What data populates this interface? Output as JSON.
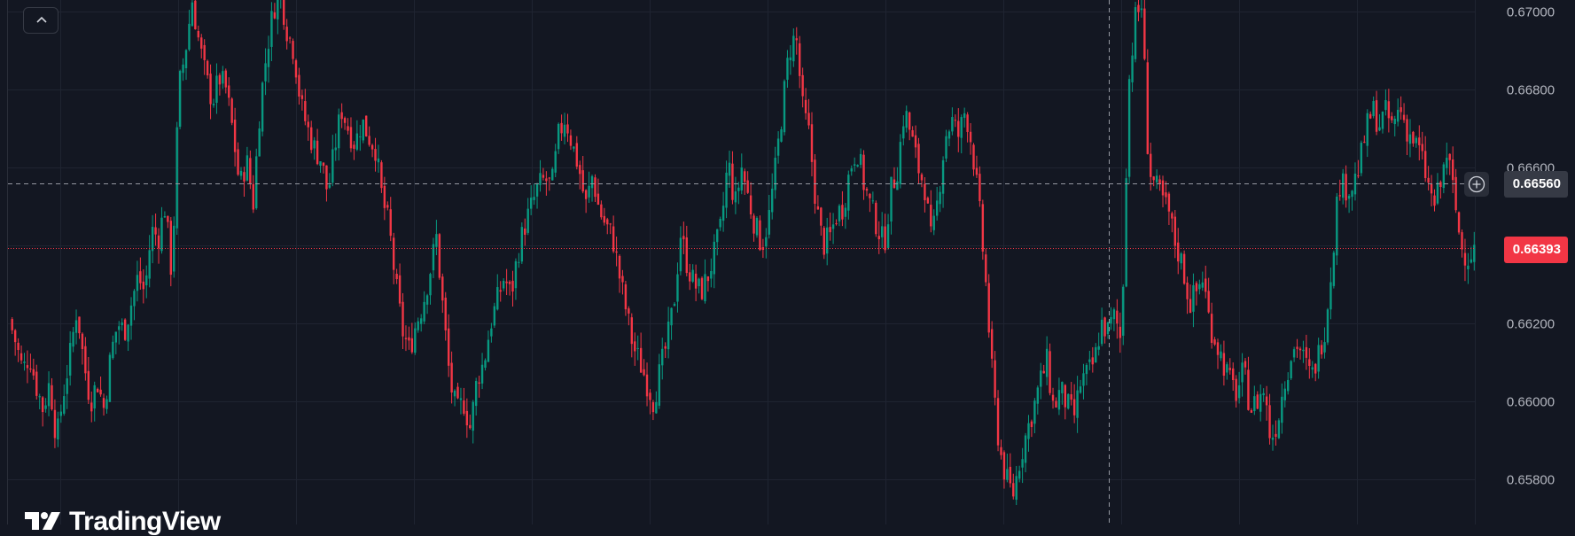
{
  "colors": {
    "background": "#131722",
    "grid": "#1f2431",
    "up": "#089981",
    "down": "#f23645",
    "axis_text": "#b2b5be",
    "crosshair": "#9598a1",
    "crosshair_tag": "#363a45",
    "current_price": "#f23645"
  },
  "icons": {
    "collapse": "chevron-up-icon",
    "add": "plus-circle-icon",
    "logo": "tradingview-logo-icon"
  },
  "price_axis": {
    "ticks": [
      "0.67000",
      "0.66800",
      "0.66600",
      "0.66200",
      "0.66000",
      "0.65800"
    ]
  },
  "crosshair": {
    "price": 0.6656,
    "price_label": "0.66560"
  },
  "current_price": {
    "price": 0.66393,
    "price_label": "0.66393"
  },
  "branding": {
    "logo_text": "TradingView"
  },
  "chart_data": {
    "type": "candlestick",
    "ylim": [
      0.6573,
      0.6706
    ],
    "grid": true,
    "y_ticks": [
      0.67,
      0.668,
      0.666,
      0.664,
      0.662,
      0.66,
      0.658
    ],
    "y_tick_labels": [
      "0.67000",
      "0.66800",
      "0.66600",
      "",
      "0.66200",
      "0.66000",
      "0.65800"
    ],
    "title": "",
    "xlabel": "",
    "ylabel": "",
    "series": [
      {
        "name": "",
        "close_path": [
          0.6621,
          0.6615,
          0.6608,
          0.6612,
          0.6604,
          0.6598,
          0.6605,
          0.659,
          0.6602,
          0.6612,
          0.6624,
          0.661,
          0.66,
          0.6605,
          0.6598,
          0.6612,
          0.662,
          0.6618,
          0.6625,
          0.6632,
          0.6628,
          0.6644,
          0.6642,
          0.665,
          0.6632,
          0.668,
          0.669,
          0.6703,
          0.6692,
          0.6683,
          0.6677,
          0.6683,
          0.668,
          0.6669,
          0.6655,
          0.6662,
          0.6651,
          0.6676,
          0.669,
          0.6701,
          0.6705,
          0.6695,
          0.669,
          0.6676,
          0.667,
          0.6665,
          0.6662,
          0.6653,
          0.6665,
          0.6675,
          0.667,
          0.6666,
          0.6672,
          0.6668,
          0.6665,
          0.6652,
          0.6645,
          0.663,
          0.6618,
          0.6613,
          0.662,
          0.6625,
          0.6633,
          0.6642,
          0.6623,
          0.6605,
          0.6597,
          0.66,
          0.6593,
          0.6606,
          0.661,
          0.662,
          0.6626,
          0.6632,
          0.6627,
          0.6638,
          0.6645,
          0.665,
          0.6655,
          0.6657,
          0.6655,
          0.6668,
          0.6673,
          0.6666,
          0.666,
          0.665,
          0.6658,
          0.6649,
          0.6645,
          0.6642,
          0.6632,
          0.6623,
          0.6614,
          0.661,
          0.6605,
          0.66,
          0.6608,
          0.6615,
          0.6625,
          0.6643,
          0.6635,
          0.663,
          0.6628,
          0.6632,
          0.6638,
          0.6645,
          0.6662,
          0.665,
          0.666,
          0.6652,
          0.6645,
          0.664,
          0.6647,
          0.666,
          0.6675,
          0.669,
          0.6694,
          0.6675,
          0.6668,
          0.665,
          0.664,
          0.6642,
          0.6648,
          0.665,
          0.666,
          0.6665,
          0.6656,
          0.665,
          0.6645,
          0.664,
          0.6654,
          0.666,
          0.6675,
          0.6668,
          0.666,
          0.6655,
          0.664,
          0.6653,
          0.6668,
          0.6672,
          0.6668,
          0.6675,
          0.6665,
          0.665,
          0.663,
          0.6605,
          0.6588,
          0.658,
          0.6576,
          0.6585,
          0.6592,
          0.6598,
          0.6605,
          0.661,
          0.6598,
          0.6603,
          0.6599,
          0.6596,
          0.6605,
          0.6607,
          0.661,
          0.662,
          0.6618,
          0.6622,
          0.6615,
          0.668,
          0.6698,
          0.6702,
          0.666,
          0.6655,
          0.6652,
          0.6648,
          0.664,
          0.6635,
          0.6625,
          0.6628,
          0.6632,
          0.662,
          0.6615,
          0.661,
          0.6605,
          0.6602,
          0.6608,
          0.6598,
          0.66,
          0.6603,
          0.659,
          0.6595,
          0.6605,
          0.6612,
          0.6615,
          0.661,
          0.6606,
          0.6612,
          0.6619,
          0.6635,
          0.6656,
          0.6655,
          0.6655,
          0.666,
          0.6669,
          0.6675,
          0.6671,
          0.6674,
          0.667,
          0.6676,
          0.667,
          0.6667,
          0.6664,
          0.6657,
          0.665,
          0.6655,
          0.6664,
          0.6653,
          0.664,
          0.6637,
          0.6639
        ]
      }
    ]
  }
}
